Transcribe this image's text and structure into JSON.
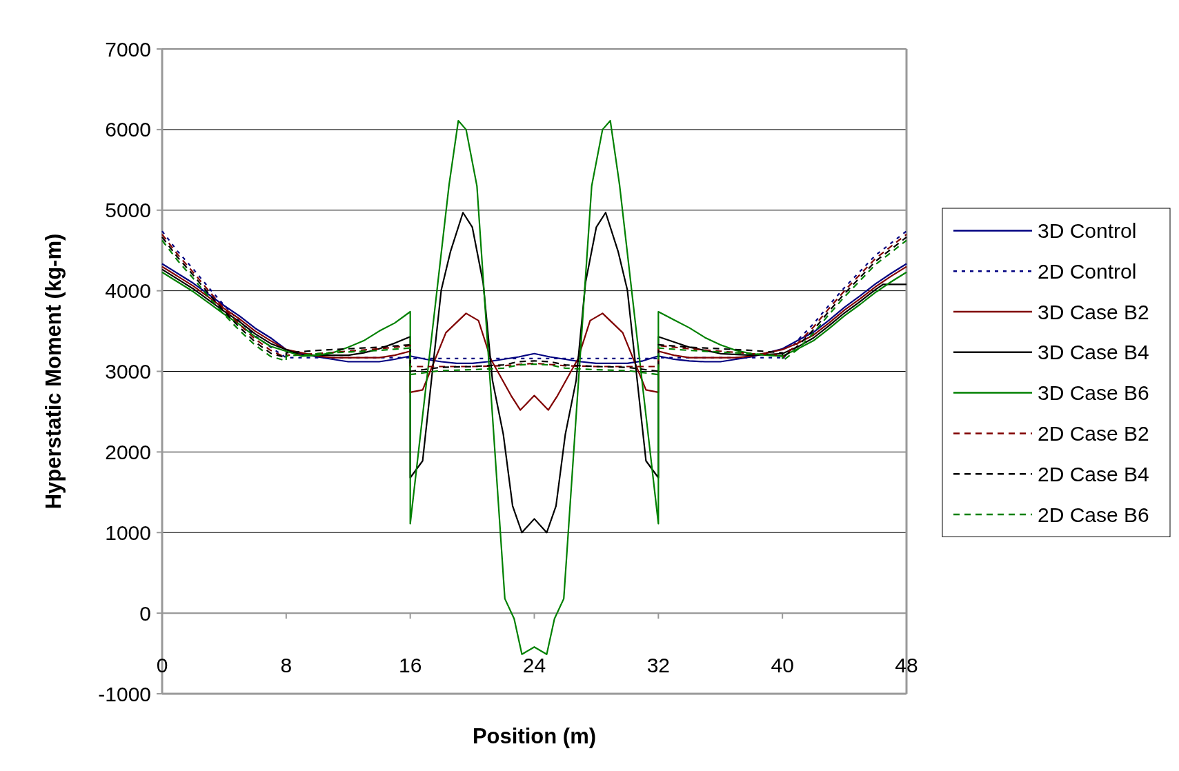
{
  "chart_data": {
    "type": "line",
    "xlabel": "Position (m)",
    "ylabel": "Hyperstatic Moment (kg-m)",
    "xlim": [
      0,
      48
    ],
    "xticks": [
      0,
      8,
      16,
      24,
      32,
      40,
      48
    ],
    "ylim": [
      -1000,
      7000
    ],
    "yticks": [
      -1000,
      0,
      1000,
      2000,
      3000,
      4000,
      5000,
      6000,
      7000
    ],
    "grid": "y",
    "legend": "right",
    "series": [
      {
        "name": "3D Control",
        "color": "#000080",
        "line_style": "solid",
        "x": [
          0,
          1,
          2,
          3,
          4,
          5,
          6,
          7,
          8,
          9,
          10,
          11,
          12,
          13,
          14,
          15,
          16,
          17,
          18,
          19,
          20,
          21,
          22,
          23,
          24,
          25,
          26,
          27,
          28,
          29,
          30,
          31,
          32,
          33,
          34,
          35,
          36,
          37,
          38,
          39,
          40,
          41,
          42,
          43,
          44,
          45,
          46,
          47,
          48
        ],
        "values": [
          4335,
          4215,
          4095,
          3955,
          3815,
          3685,
          3535,
          3415,
          3270,
          3220,
          3180,
          3150,
          3120,
          3120,
          3120,
          3150,
          3190,
          3150,
          3120,
          3100,
          3100,
          3120,
          3150,
          3180,
          3220,
          3180,
          3150,
          3120,
          3100,
          3100,
          3100,
          3130,
          3190,
          3150,
          3130,
          3120,
          3120,
          3150,
          3180,
          3230,
          3280,
          3385,
          3485,
          3635,
          3795,
          3935,
          4085,
          4215,
          4335
        ]
      },
      {
        "name": "2D Control",
        "color": "#000080",
        "line_style": "dotted",
        "x": [
          0,
          1,
          2,
          3,
          4,
          5,
          6,
          7,
          8,
          8,
          10,
          12,
          14,
          16,
          16,
          20,
          24,
          28,
          32,
          32,
          34,
          36,
          38,
          40,
          40,
          41,
          42,
          43,
          44,
          45,
          46,
          47,
          48
        ],
        "values": [
          4740,
          4490,
          4270,
          4040,
          3820,
          3620,
          3440,
          3300,
          3170,
          3170,
          3170,
          3170,
          3170,
          3170,
          3160,
          3160,
          3160,
          3160,
          3160,
          3170,
          3170,
          3170,
          3170,
          3170,
          3150,
          3390,
          3590,
          3820,
          4040,
          4240,
          4440,
          4590,
          4740
        ]
      },
      {
        "name": "3D Case B2",
        "color": "#800000",
        "line_style": "solid",
        "x": [
          0,
          1,
          2,
          3,
          4,
          5,
          6,
          7,
          8,
          9,
          10,
          11,
          12,
          13,
          14,
          15,
          16,
          16,
          16.8,
          18.3,
          19.6,
          20.4,
          21.2,
          22.5,
          23.1,
          24,
          24.9,
          25.5,
          26.8,
          27.6,
          28.4,
          29.7,
          31.2,
          32,
          32,
          33,
          34,
          35,
          36,
          37,
          38,
          39,
          40,
          41,
          42,
          43,
          44,
          45,
          46,
          47,
          48
        ],
        "values": [
          4300,
          4180,
          4060,
          3920,
          3780,
          3650,
          3500,
          3380,
          3270,
          3230,
          3190,
          3170,
          3170,
          3170,
          3170,
          3200,
          3250,
          2740,
          2770,
          3480,
          3720,
          3630,
          3150,
          2700,
          2520,
          2700,
          2520,
          2700,
          3150,
          3630,
          3720,
          3480,
          2770,
          2740,
          3250,
          3200,
          3170,
          3170,
          3170,
          3170,
          3190,
          3230,
          3270,
          3350,
          3450,
          3600,
          3760,
          3900,
          4050,
          4180,
          4300
        ]
      },
      {
        "name": "3D Case B4",
        "color": "#000000",
        "line_style": "solid",
        "x": [
          0,
          1,
          2,
          3,
          4,
          5,
          6,
          7,
          8,
          9,
          10,
          12,
          13,
          14,
          15,
          16,
          16,
          16.8,
          18,
          18.6,
          19.4,
          20,
          20.7,
          21.3,
          22,
          22.6,
          23.2,
          24,
          24.8,
          25.4,
          26,
          26.7,
          27.3,
          28,
          28.6,
          29.4,
          30,
          31.2,
          32,
          32,
          34,
          36,
          38,
          40,
          41,
          42,
          43,
          44,
          45,
          46,
          46.5,
          48
        ],
        "values": [
          4265,
          4145,
          4025,
          3885,
          3745,
          3615,
          3465,
          3345,
          3270,
          3200,
          3200,
          3200,
          3230,
          3280,
          3350,
          3430,
          1680,
          1890,
          4010,
          4490,
          4970,
          4790,
          4100,
          2890,
          2220,
          1330,
          1000,
          1170,
          1000,
          1330,
          2220,
          2890,
          4100,
          4790,
          4970,
          4490,
          4010,
          1890,
          1680,
          3430,
          3300,
          3220,
          3200,
          3220,
          3305,
          3415,
          3565,
          3725,
          3865,
          4015,
          4080,
          4080
        ]
      },
      {
        "name": "3D Case B6",
        "color": "#008000",
        "line_style": "solid",
        "x": [
          0,
          1,
          2,
          3,
          4,
          5,
          6,
          7,
          8,
          9,
          10,
          11,
          12,
          13,
          14,
          15,
          16,
          16,
          18.5,
          19.1,
          19.6,
          20.3,
          22.1,
          22.7,
          23.2,
          24,
          24.8,
          25.3,
          25.9,
          27.7,
          28.4,
          28.9,
          29.5,
          32,
          32,
          33,
          34,
          35,
          36,
          37,
          38,
          39,
          40,
          41,
          42,
          43,
          44,
          45,
          46,
          47,
          48
        ],
        "values": [
          4230,
          4110,
          3990,
          3850,
          3710,
          3580,
          3430,
          3310,
          3250,
          3190,
          3200,
          3230,
          3300,
          3380,
          3500,
          3600,
          3740,
          1110,
          5310,
          6110,
          6000,
          5300,
          180,
          -70,
          -510,
          -420,
          -510,
          -70,
          180,
          5300,
          6000,
          6110,
          5310,
          1110,
          3740,
          3640,
          3540,
          3420,
          3330,
          3260,
          3220,
          3200,
          3190,
          3280,
          3380,
          3530,
          3690,
          3830,
          3980,
          4110,
          4230
        ]
      },
      {
        "name": "2D Case B2",
        "color": "#800000",
        "line_style": "dashed",
        "x": [
          0,
          1,
          2,
          3,
          4,
          5,
          6,
          7,
          8,
          8,
          10,
          12,
          14,
          16,
          16,
          18,
          20,
          22,
          24,
          26,
          28,
          30,
          32,
          32,
          34,
          36,
          38,
          40,
          40,
          41,
          42,
          43,
          44,
          45,
          46,
          47,
          48
        ],
        "values": [
          4700,
          4450,
          4230,
          4000,
          3780,
          3580,
          3400,
          3260,
          3170,
          3200,
          3220,
          3250,
          3280,
          3320,
          3060,
          3060,
          3060,
          3070,
          3100,
          3070,
          3060,
          3060,
          3060,
          3320,
          3280,
          3250,
          3220,
          3200,
          3170,
          3350,
          3550,
          3780,
          4000,
          4200,
          4400,
          4550,
          4700
        ]
      },
      {
        "name": "2D Case B4",
        "color": "#000000",
        "line_style": "dashed",
        "x": [
          0,
          1,
          2,
          3,
          4,
          5,
          6,
          7,
          8,
          8,
          10,
          12,
          14,
          16,
          16,
          18,
          20,
          22,
          23,
          24,
          25,
          26,
          28,
          30,
          32,
          32,
          34,
          36,
          38,
          40,
          40,
          41,
          42,
          43,
          44,
          45,
          46,
          47,
          48
        ],
        "values": [
          4665,
          4415,
          4195,
          3965,
          3745,
          3545,
          3365,
          3225,
          3170,
          3230,
          3260,
          3280,
          3300,
          3330,
          3000,
          3050,
          3060,
          3080,
          3120,
          3130,
          3120,
          3080,
          3060,
          3050,
          3000,
          3330,
          3300,
          3280,
          3260,
          3230,
          3170,
          3315,
          3515,
          3745,
          3965,
          4165,
          4365,
          4515,
          4665
        ]
      },
      {
        "name": "2D Case B6",
        "color": "#008000",
        "line_style": "dashed",
        "x": [
          0,
          1,
          2,
          3,
          4,
          5,
          6,
          7,
          8,
          8,
          10,
          12,
          14,
          16,
          16,
          18,
          20,
          22,
          23,
          24,
          25,
          26,
          28,
          30,
          32,
          32,
          34,
          36,
          38,
          40,
          40,
          41,
          42,
          43,
          44,
          45,
          46,
          47,
          48
        ],
        "values": [
          4625,
          4375,
          4155,
          3925,
          3705,
          3505,
          3325,
          3185,
          3130,
          3190,
          3220,
          3240,
          3260,
          3290,
          2960,
          3010,
          3020,
          3040,
          3080,
          3090,
          3080,
          3040,
          3020,
          3010,
          2960,
          3290,
          3260,
          3240,
          3220,
          3190,
          3130,
          3275,
          3475,
          3705,
          3925,
          4125,
          4325,
          4475,
          4625
        ]
      }
    ]
  }
}
